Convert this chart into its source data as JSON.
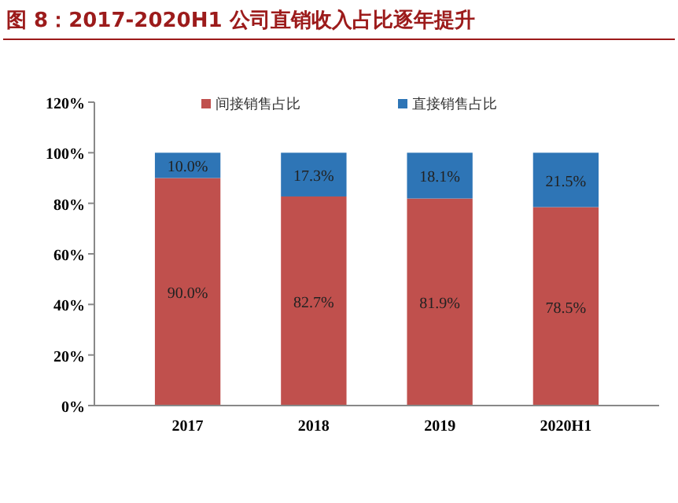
{
  "chart_data": {
    "type": "bar",
    "title": "图 8：2017-2020H1 公司直销收入占比逐年提升",
    "categories": [
      "2017",
      "2018",
      "2019",
      "2020H1"
    ],
    "stacked": true,
    "series": [
      {
        "name": "间接销售占比",
        "color": "#c0504d",
        "values": [
          90.0,
          82.7,
          81.9,
          78.5
        ],
        "value_labels": [
          "90.0%",
          "82.7%",
          "81.9%",
          "78.5%"
        ]
      },
      {
        "name": "直接销售占比",
        "color": "#2e75b6",
        "values": [
          10.0,
          17.3,
          18.1,
          21.5
        ],
        "value_labels": [
          "10.0%",
          "17.3%",
          "18.1%",
          "21.5%"
        ]
      }
    ],
    "ylim": [
      0,
      120
    ],
    "yticks": [
      {
        "value": 0,
        "label": "0%"
      },
      {
        "value": 20,
        "label": "20%"
      },
      {
        "value": 40,
        "label": "40%"
      },
      {
        "value": 60,
        "label": "60%"
      },
      {
        "value": 80,
        "label": "80%"
      },
      {
        "value": 100,
        "label": "100%"
      },
      {
        "value": 120,
        "label": "120%"
      }
    ],
    "grid": false,
    "legend": "top right"
  }
}
